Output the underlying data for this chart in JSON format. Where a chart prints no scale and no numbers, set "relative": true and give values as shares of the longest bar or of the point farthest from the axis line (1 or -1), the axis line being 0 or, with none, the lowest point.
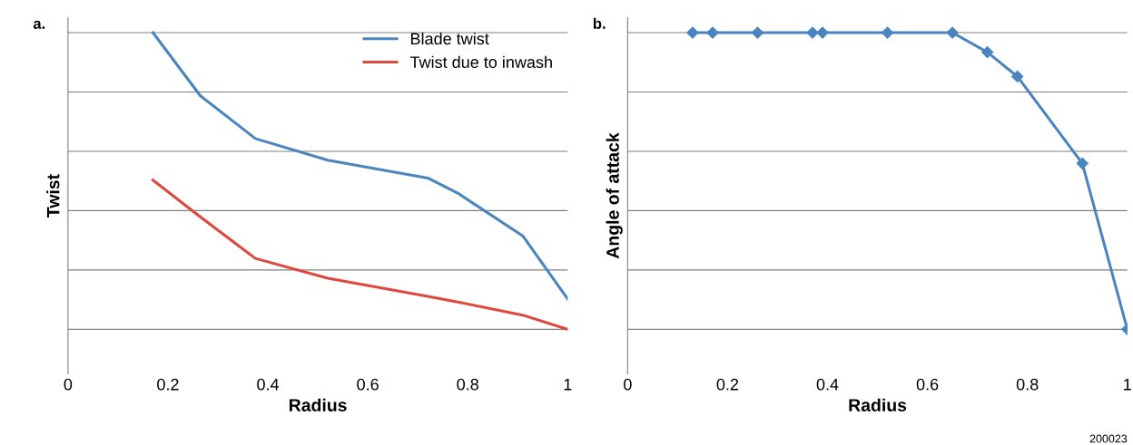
{
  "chart_data": [
    {
      "type": "line",
      "relative": true,
      "xlabel": "Radius",
      "ylabel": "Twist",
      "annotations": [
        "a."
      ],
      "xlim": [
        0,
        1
      ],
      "xticks": [
        0,
        0.2,
        0.4,
        0.6,
        0.8,
        1
      ],
      "grid": "y",
      "legend": "top right",
      "marker": "none",
      "line_style": "solid",
      "series": [
        {
          "name": "Blade twist",
          "color": "#4a85c0",
          "x": [
            0.17,
            0.265,
            0.375,
            0.52,
            0.72,
            0.78,
            0.91,
            1.0
          ],
          "values": [
            1.0,
            0.787,
            0.643,
            0.57,
            0.51,
            0.459,
            0.315,
            0.102
          ]
        },
        {
          "name": "Twist due to inwash",
          "color": "#e0473e",
          "x": [
            0.17,
            0.26,
            0.375,
            0.52,
            0.72,
            0.78,
            0.91,
            1.0
          ],
          "values": [
            0.503,
            0.385,
            0.239,
            0.172,
            0.111,
            0.092,
            0.048,
            0
          ]
        }
      ]
    },
    {
      "type": "line",
      "relative": true,
      "xlabel": "Radius",
      "ylabel": "Angle of attack",
      "annotations": [
        "b.",
        "200023"
      ],
      "xlim": [
        0,
        1
      ],
      "xticks": [
        0,
        0.2,
        0.4,
        0.6,
        0.8,
        1
      ],
      "grid": "y",
      "marker": "diamond",
      "line_style": "solid",
      "series": [
        {
          "color": "#4a85c0",
          "x": [
            0.13,
            0.17,
            0.26,
            0.37,
            0.39,
            0.52,
            0.65,
            0.72,
            0.78,
            0.91,
            1.0
          ],
          "values": [
            1.0,
            1.0,
            1.0,
            1.0,
            1.0,
            1.0,
            1.0,
            0.934,
            0.852,
            0.559,
            0
          ]
        }
      ]
    }
  ]
}
